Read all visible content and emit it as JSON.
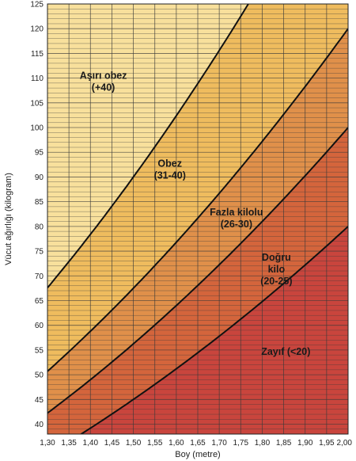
{
  "chart_data": {
    "type": "area",
    "title": "",
    "xlabel": "Boy (metre)",
    "ylabel": "Vücut ağırlığı (kilogram)",
    "xlim": [
      1.3,
      2.0
    ],
    "ylim": [
      38,
      125
    ],
    "x_ticks": [
      "1,30",
      "1,35",
      "1,40",
      "1,45",
      "1,50",
      "1,55",
      "1,60",
      "1,65",
      "1,70",
      "1,75",
      "1,80",
      "1,85",
      "1,90",
      "1,95",
      "2,00"
    ],
    "y_ticks": [
      "40",
      "45",
      "50",
      "55",
      "60",
      "65",
      "70",
      "75",
      "80",
      "85",
      "90",
      "95",
      "100",
      "105",
      "110",
      "115",
      "120",
      "125"
    ],
    "grid": true,
    "bmi_boundaries": [
      20,
      25,
      30,
      40
    ],
    "regions": [
      {
        "name": "Zayıf (<20)",
        "lines": [
          "Zayıf (<20)"
        ],
        "bmi_min": 0,
        "bmi_max": 20,
        "color": "#c9453d",
        "label_x": 1.855,
        "label_y": 54.7
      },
      {
        "name": "Doğru kilo (20-25)",
        "lines": [
          "Doğru",
          "kilo",
          "(20-25)"
        ],
        "bmi_min": 20,
        "bmi_max": 25,
        "color": "#d4653c",
        "label_x": 1.833,
        "label_y": 71.3
      },
      {
        "name": "Fazla kilolu (26-30)",
        "lines": [
          "Fazla kilolu",
          "(26-30)"
        ],
        "bmi_min": 25,
        "bmi_max": 30,
        "color": "#e0904a",
        "label_x": 1.74,
        "label_y": 81.7
      },
      {
        "name": "Obez (31-40)",
        "lines": [
          "Obez",
          "(31-40)"
        ],
        "bmi_min": 30,
        "bmi_max": 40,
        "color": "#efbc5e",
        "label_x": 1.585,
        "label_y": 91.5
      },
      {
        "name": "Aşırı obez (+40)",
        "lines": [
          "Aşırı obez",
          "(+40)"
        ],
        "bmi_min": 40,
        "bmi_max": 1000,
        "color": "#f8e09c",
        "label_x": 1.43,
        "label_y": 109.3
      }
    ]
  }
}
